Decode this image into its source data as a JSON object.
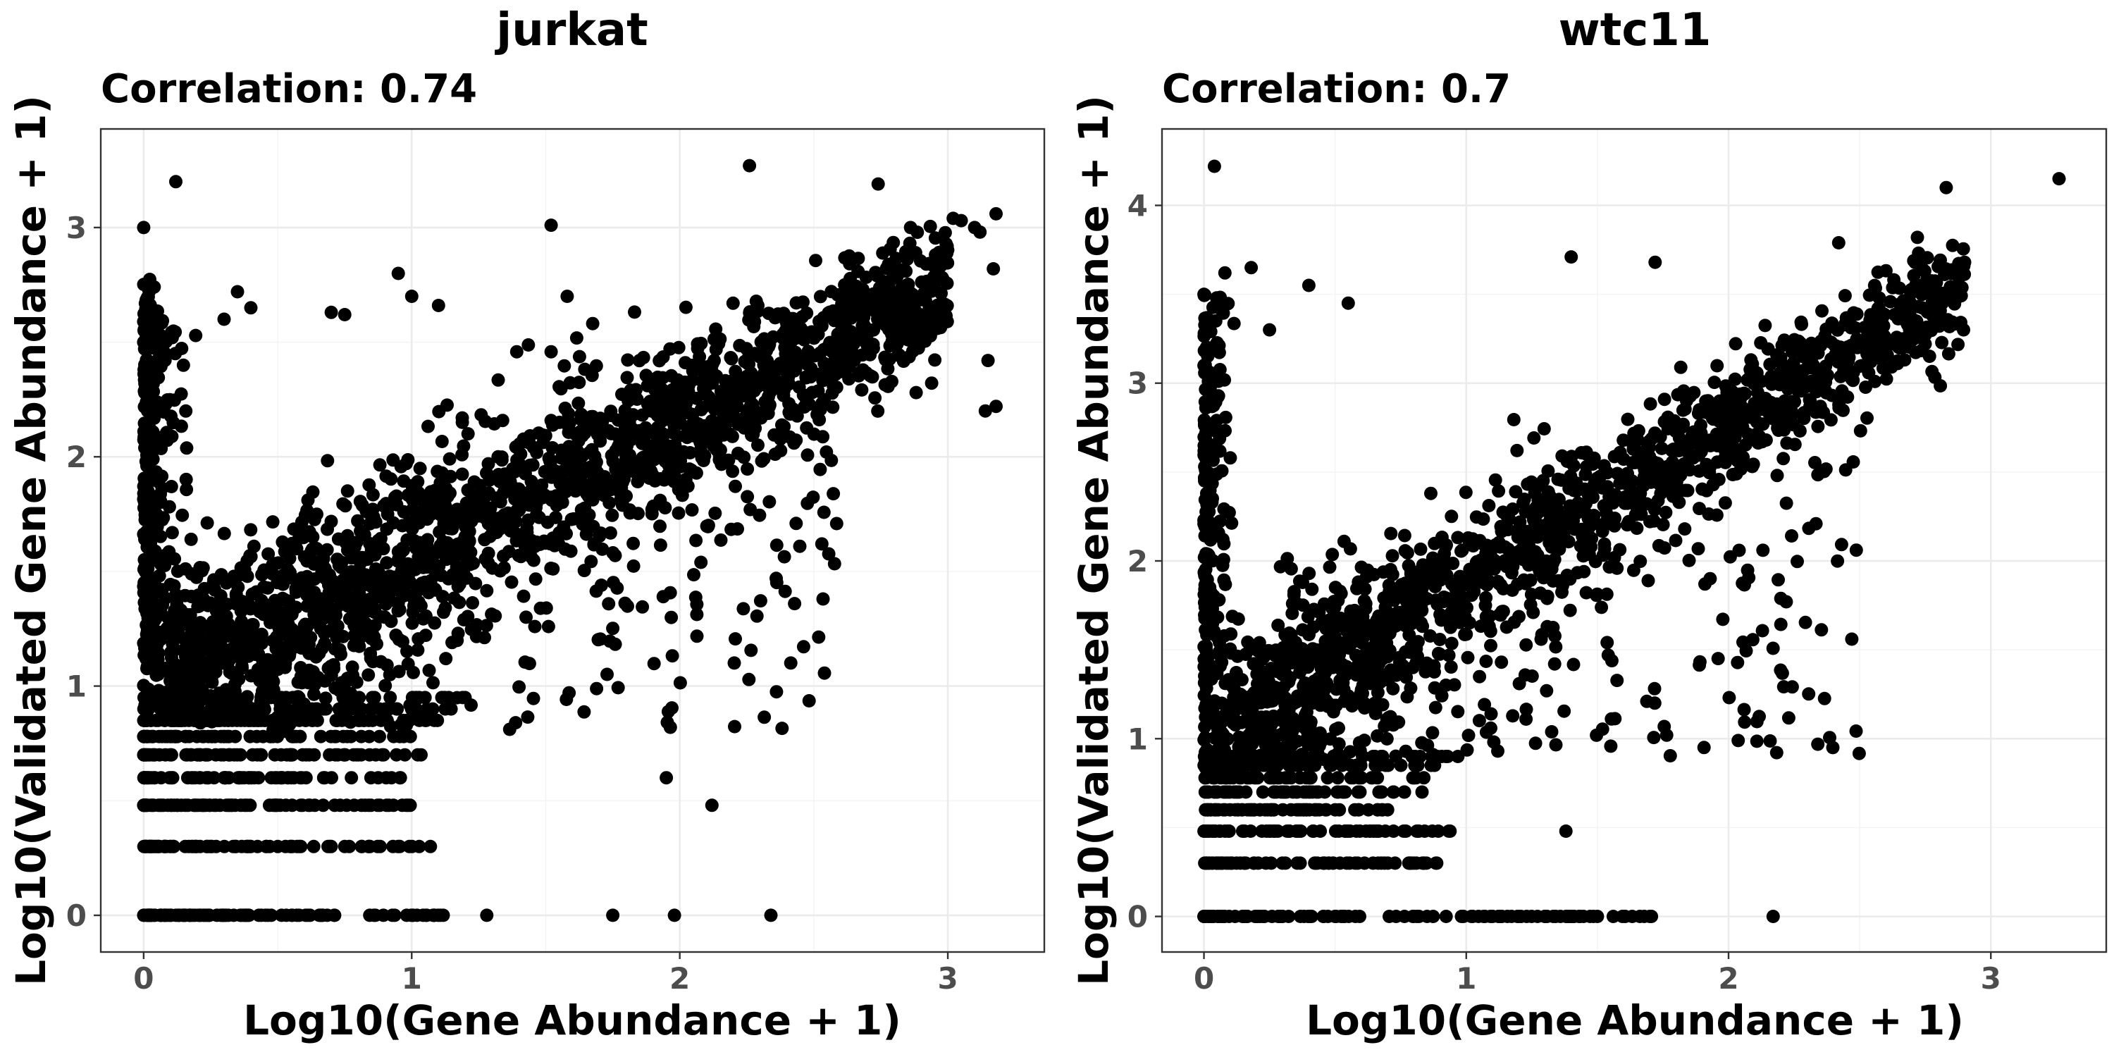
{
  "chart_data": [
    {
      "type": "scatter",
      "title": "jurkat",
      "subtitle": "Correlation: 0.74",
      "xlabel": "Log10(Gene Abundance + 1)",
      "ylabel": "Log10(Validated Gene Abundance + 1)",
      "xlim": [
        -0.16,
        3.36
      ],
      "ylim": [
        -0.16,
        3.43
      ],
      "xticks": [
        0,
        1,
        2,
        3
      ],
      "yticks": [
        0,
        1,
        2,
        3
      ],
      "grid": true,
      "series": [
        {
          "color": "#000000",
          "outliers": [
            [
              0.12,
              3.2
            ],
            [
              0.0,
              3.0
            ],
            [
              2.26,
              3.27
            ],
            [
              2.74,
              3.19
            ],
            [
              1.52,
              3.01
            ],
            [
              3.02,
              3.04
            ],
            [
              3.05,
              3.03
            ],
            [
              3.1,
              3.0
            ],
            [
              3.12,
              2.98
            ],
            [
              3.18,
              3.06
            ],
            [
              2.96,
              2.56
            ],
            [
              3.17,
              2.82
            ],
            [
              3.15,
              2.42
            ],
            [
              3.14,
              2.2
            ],
            [
              3.18,
              2.22
            ],
            [
              0.95,
              2.8
            ],
            [
              1.0,
              2.7
            ],
            [
              1.1,
              2.66
            ],
            [
              0.7,
              2.63
            ],
            [
              0.75,
              2.62
            ],
            [
              0.35,
              2.72
            ],
            [
              0.4,
              2.65
            ],
            [
              2.53,
              1.62
            ],
            [
              1.95,
              0.6
            ],
            [
              2.12,
              0.48
            ],
            [
              1.75,
              0.0
            ],
            [
              1.98,
              0.0
            ],
            [
              2.34,
              0.0
            ],
            [
              1.28,
              0.0
            ],
            [
              0.3,
              2.6
            ],
            [
              1.58,
              2.7
            ],
            [
              0.0,
              2.5
            ]
          ],
          "columns": [
            {
              "x": [
                0.0,
                0.2
              ],
              "y": [
                0.9,
                2.6
              ],
              "n": 220
            },
            {
              "x": [
                0.0,
                0.08
              ],
              "y": [
                1.0,
                2.8
              ],
              "n": 100
            }
          ],
          "rows": [
            {
              "y": 0.0,
              "x": [
                0.0,
                1.12
              ],
              "n": 110
            },
            {
              "y": 0.3,
              "x": [
                0.0,
                1.08
              ],
              "n": 85
            },
            {
              "y": 0.48,
              "x": [
                0.0,
                1.0
              ],
              "n": 80
            },
            {
              "y": 0.6,
              "x": [
                0.0,
                0.96
              ],
              "n": 70
            },
            {
              "y": 0.7,
              "x": [
                0.0,
                1.05
              ],
              "n": 70
            },
            {
              "y": 0.78,
              "x": [
                0.0,
                1.0
              ],
              "n": 70
            },
            {
              "y": 0.85,
              "x": [
                0.0,
                1.1
              ],
              "n": 70
            },
            {
              "y": 0.9,
              "x": [
                0.0,
                1.15
              ],
              "n": 60
            },
            {
              "y": 0.95,
              "x": [
                0.0,
                1.2
              ],
              "n": 60
            }
          ],
          "band": {
            "x": [
              0.1,
              3.0
            ],
            "y_center_start": 1.0,
            "y_center_end": 2.75,
            "spread_start": 0.4,
            "spread_end": 0.25,
            "n": 1800
          },
          "scatter": {
            "x": [
              0.05,
              2.6
            ],
            "y": [
              0.8,
              2.7
            ],
            "n": 320
          },
          "seed": 11
        }
      ]
    },
    {
      "type": "scatter",
      "title": "wtc11",
      "subtitle": "Correlation: 0.7",
      "xlabel": "Log10(Gene Abundance + 1)",
      "ylabel": "Log10(Validated Gene Abundance + 1)",
      "xlim": [
        -0.16,
        3.44
      ],
      "ylim": [
        -0.2,
        4.43
      ],
      "xticks": [
        0,
        1,
        2,
        3
      ],
      "yticks": [
        0,
        1,
        2,
        3,
        4
      ],
      "grid": true,
      "series": [
        {
          "color": "#000000",
          "outliers": [
            [
              0.04,
              4.22
            ],
            [
              3.26,
              4.15
            ],
            [
              2.83,
              4.1
            ],
            [
              0.0,
              3.5
            ],
            [
              0.08,
              3.62
            ],
            [
              0.18,
              3.65
            ],
            [
              0.4,
              3.55
            ],
            [
              1.4,
              3.71
            ],
            [
              1.72,
              3.68
            ],
            [
              2.42,
              3.79
            ],
            [
              2.72,
              3.82
            ],
            [
              2.9,
              3.68
            ],
            [
              2.84,
              3.5
            ],
            [
              2.22,
              1.77
            ],
            [
              2.47,
              1.56
            ],
            [
              1.38,
              0.48
            ],
            [
              2.17,
              0.0
            ],
            [
              1.7,
              0.0
            ],
            [
              1.5,
              0.0
            ],
            [
              1.91,
              1.87
            ],
            [
              1.93,
              1.9
            ],
            [
              0.25,
              3.3
            ],
            [
              0.55,
              3.45
            ]
          ],
          "columns": [
            {
              "x": [
                0.0,
                0.12
              ],
              "y": [
                0.8,
                3.5
              ],
              "n": 240
            }
          ],
          "rows": [
            {
              "y": 0.0,
              "x": [
                0.0,
                1.72
              ],
              "n": 120
            },
            {
              "y": 0.3,
              "x": [
                0.0,
                0.92
              ],
              "n": 70
            },
            {
              "y": 0.48,
              "x": [
                0.0,
                0.95
              ],
              "n": 70
            },
            {
              "y": 0.6,
              "x": [
                0.0,
                0.72
              ],
              "n": 60
            },
            {
              "y": 0.7,
              "x": [
                0.0,
                0.88
              ],
              "n": 60
            },
            {
              "y": 0.78,
              "x": [
                0.0,
                0.9
              ],
              "n": 50
            },
            {
              "y": 0.85,
              "x": [
                0.0,
                0.95
              ],
              "n": 50
            },
            {
              "y": 0.9,
              "x": [
                0.0,
                1.0
              ],
              "n": 50
            }
          ],
          "band": {
            "x": [
              0.1,
              2.9
            ],
            "y_center_start": 1.1,
            "y_center_end": 3.55,
            "spread_start": 0.5,
            "spread_end": 0.25,
            "n": 1300
          },
          "scatter": {
            "x": [
              0.05,
              2.5
            ],
            "y": [
              0.9,
              3.5
            ],
            "n": 300
          },
          "seed": 23
        }
      ]
    }
  ]
}
